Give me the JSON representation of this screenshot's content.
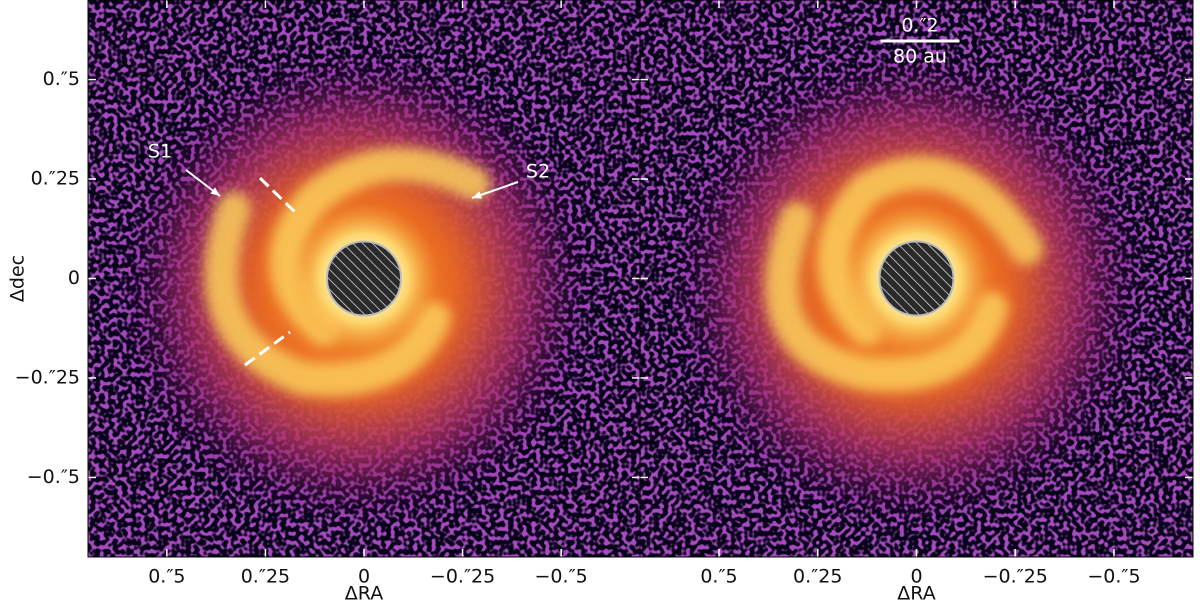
{
  "chart_data": [
    {
      "type": "image",
      "xlabel": "ΔRA",
      "ylabel": "Δdec",
      "xlim": [
        0.7,
        -0.7
      ],
      "ylim": [
        -0.7,
        0.7
      ],
      "xticks": [
        {
          "value": 0.5,
          "label": "0.″5"
        },
        {
          "value": 0.25,
          "label": "0.″25"
        },
        0,
        {
          "value": -0.25,
          "label": "−0.″25"
        },
        {
          "value": -0.5,
          "label": "−0.″5"
        }
      ],
      "yticks": [
        {
          "value": -0.5,
          "label": "−0.″5"
        },
        {
          "value": -0.25,
          "label": "−0.″25"
        },
        0,
        {
          "value": 0.25,
          "label": "0.″25"
        },
        {
          "value": 0.5,
          "label": "0.″5"
        }
      ],
      "annotations": [
        {
          "text": "S1"
        },
        {
          "text": "S2"
        }
      ]
    },
    {
      "type": "image",
      "xlabel": "ΔRA",
      "xlim": [
        0.7,
        -0.7
      ],
      "ylim": [
        -0.7,
        0.7
      ],
      "xticks": [
        {
          "value": 0.5,
          "label": "0.″5"
        },
        {
          "value": 0.25,
          "label": "0.″25"
        },
        0,
        {
          "value": -0.25,
          "label": "−0.″25"
        },
        {
          "value": -0.5,
          "label": "−0.″5"
        }
      ],
      "yticks": [
        -0.5,
        -0.25,
        0,
        0.25,
        0.5
      ],
      "scale_bar": {
        "length": 0.2,
        "label": "0.″2",
        "sublabel": "80 au"
      }
    }
  ]
}
